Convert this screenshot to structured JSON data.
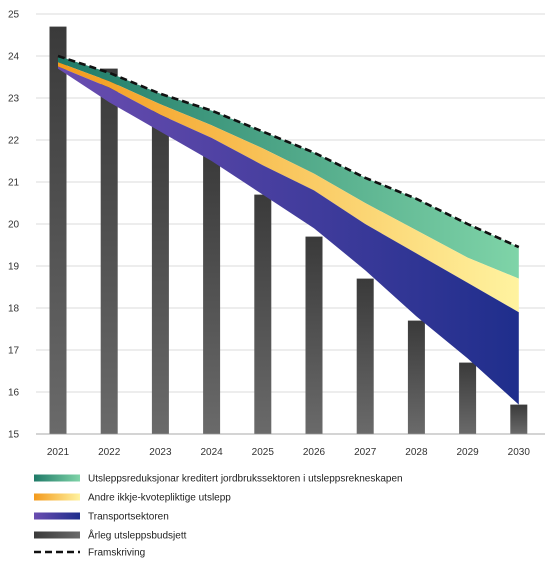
{
  "chart_data": {
    "type": "area",
    "categories": [
      "2021",
      "2022",
      "2023",
      "2024",
      "2025",
      "2026",
      "2027",
      "2028",
      "2029",
      "2030"
    ],
    "ylim": [
      15,
      25
    ],
    "yticks": [
      15,
      16,
      17,
      18,
      19,
      20,
      21,
      22,
      23,
      24,
      25
    ],
    "grid": true,
    "legend_position": "bottom-left",
    "bars": {
      "name": "Årleg utsleppsbudsjett",
      "values": [
        24.7,
        23.7,
        22.7,
        21.7,
        20.7,
        19.7,
        18.7,
        17.7,
        16.7,
        15.7
      ]
    },
    "projection": {
      "name": "Framskriving",
      "values": [
        24.0,
        23.6,
        23.1,
        22.7,
        22.2,
        21.7,
        21.1,
        20.6,
        20.0,
        19.45
      ]
    },
    "series": [
      {
        "name": "Utsleppsreduksjonar kreditert jordbrukssektoren i utsleppsrekneskapen",
        "lower": [
          23.85,
          23.4,
          22.85,
          22.35,
          21.8,
          21.2,
          20.5,
          19.85,
          19.2,
          18.7
        ],
        "upper": [
          24.0,
          23.6,
          23.1,
          22.7,
          22.2,
          21.7,
          21.1,
          20.6,
          20.0,
          19.45
        ]
      },
      {
        "name": "Andre ikkje-kvotepliktige utslepp",
        "lower": [
          23.75,
          23.25,
          22.6,
          22.05,
          21.4,
          20.8,
          20.0,
          19.3,
          18.6,
          17.9
        ],
        "upper": [
          23.85,
          23.4,
          22.85,
          22.35,
          21.8,
          21.2,
          20.5,
          19.85,
          19.2,
          18.7
        ]
      },
      {
        "name": "Transportsektoren",
        "lower": [
          23.7,
          22.9,
          22.2,
          21.5,
          20.7,
          19.9,
          18.9,
          17.8,
          16.8,
          15.7
        ],
        "upper": [
          23.75,
          23.25,
          22.6,
          22.05,
          21.4,
          20.8,
          20.0,
          19.3,
          18.6,
          17.9
        ]
      }
    ],
    "legend": [
      {
        "label": "Utsleppsreduksjonar kreditert jordbrukssektoren i utsleppsrekneskapen",
        "kind": "grad",
        "from": "#1f7a68",
        "to": "#7fd4a8"
      },
      {
        "label": "Andre ikkje-kvotepliktige utslepp",
        "kind": "grad",
        "from": "#f39a1c",
        "to": "#fff3a0"
      },
      {
        "label": "Transportsektoren",
        "kind": "grad",
        "from": "#6a4db0",
        "to": "#1f2e8c"
      },
      {
        "label": "Årleg utsleppsbudsjett",
        "kind": "grad",
        "from": "#3a3a3a",
        "to": "#6a6a6a"
      },
      {
        "label": "Framskriving",
        "kind": "dash",
        "from": "#111111",
        "to": "#111111"
      }
    ]
  }
}
